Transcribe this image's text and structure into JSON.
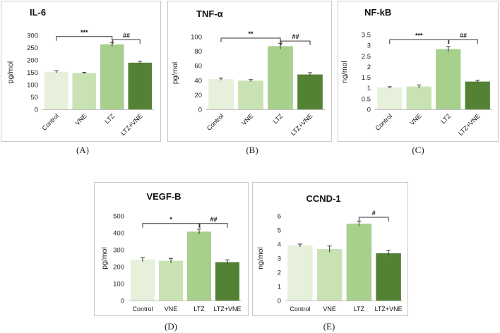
{
  "colors": [
    "#e6f0da",
    "#c9e2b3",
    "#a8d08d",
    "#548235"
  ],
  "chart_data": [
    {
      "id": "A",
      "type": "bar",
      "title": "IL-6",
      "ylabel": "pg/mol",
      "categories": [
        "Control",
        "VNE",
        "LTZ",
        "LTZ+VNE"
      ],
      "values": [
        152,
        147,
        263,
        189
      ],
      "errors": [
        4,
        3,
        8,
        6
      ],
      "ylim": [
        0,
        300
      ],
      "yticks": [
        "0",
        "50",
        "100",
        "150",
        "200",
        "250",
        "300"
      ],
      "rotate_labels": true,
      "significance": [
        {
          "from": 0,
          "to": 2,
          "label": "***",
          "y": 295
        },
        {
          "from": 2,
          "to": 3,
          "label": "##",
          "y": 282
        }
      ]
    },
    {
      "id": "B",
      "type": "bar",
      "title": "TNF-α",
      "ylabel": "pg/mol",
      "categories": [
        "Control",
        "VNE",
        "LTZ",
        "LTZ+VNE"
      ],
      "values": [
        41.5,
        39.5,
        87,
        48
      ],
      "errors": [
        1.5,
        1.5,
        4,
        2.5
      ],
      "ylim": [
        0,
        100
      ],
      "yticks": [
        "0",
        "20",
        "40",
        "60",
        "80",
        "100"
      ],
      "rotate_labels": true,
      "significance": [
        {
          "from": 0,
          "to": 2,
          "label": "**",
          "y": 98
        },
        {
          "from": 2,
          "to": 3,
          "label": "##",
          "y": 94
        }
      ]
    },
    {
      "id": "C",
      "type": "bar",
      "title": "NF-kB",
      "ylabel": "ng/mol",
      "categories": [
        "Control",
        "VNE",
        "LTZ",
        "LTZ+VNE"
      ],
      "values": [
        1.03,
        1.07,
        2.82,
        1.3
      ],
      "errors": [
        0.03,
        0.07,
        0.12,
        0.06
      ],
      "ylim": [
        0,
        3.5
      ],
      "yticks": [
        "0",
        "0.5",
        "1",
        "1.5",
        "2",
        "2.5",
        "3",
        "3.5"
      ],
      "rotate_labels": true,
      "significance": [
        {
          "from": 0,
          "to": 2,
          "label": "***",
          "y": 3.26
        },
        {
          "from": 2,
          "to": 3,
          "label": "##",
          "y": 3.26
        }
      ]
    },
    {
      "id": "D",
      "type": "bar",
      "title": "VEGF-B",
      "ylabel": "pg/mol",
      "categories": [
        "Control",
        "VNE",
        "LTZ",
        "LTZ+VNE"
      ],
      "values": [
        242,
        235,
        407,
        227
      ],
      "errors": [
        12,
        14,
        15,
        13
      ],
      "ylim": [
        0,
        500
      ],
      "yticks": [
        "0",
        "100",
        "200",
        "300",
        "400",
        "500"
      ],
      "rotate_labels": false,
      "significance": [
        {
          "from": 0,
          "to": 2,
          "label": "*",
          "y": 455
        },
        {
          "from": 2,
          "to": 3,
          "label": "##",
          "y": 455
        }
      ]
    },
    {
      "id": "E",
      "type": "bar",
      "title": "CCND-1",
      "ylabel": "ng/mol",
      "categories": [
        "Control",
        "VNE",
        "LTZ",
        "LTZ+VNE"
      ],
      "values": [
        3.9,
        3.65,
        5.45,
        3.35
      ],
      "errors": [
        0.1,
        0.22,
        0.18,
        0.2
      ],
      "ylim": [
        0,
        6
      ],
      "yticks": [
        "0",
        "1",
        "2",
        "3",
        "4",
        "5",
        "6"
      ],
      "rotate_labels": false,
      "significance": [
        {
          "from": 2,
          "to": 3,
          "label": "#",
          "y": 5.9
        }
      ]
    }
  ],
  "panel_labels": [
    "(A)",
    "(B)",
    "(C)",
    "(D)",
    "(E)"
  ]
}
